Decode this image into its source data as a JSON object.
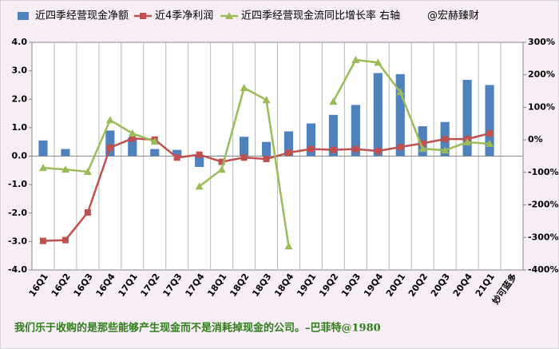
{
  "chart_data": {
    "type": "bar-line",
    "watermark": "@宏赫臻财",
    "quote": "我们乐于收购的是那些能够产生现金而不是消耗掉现金的公司。–巴菲特@1980",
    "categories": [
      "16Q1",
      "16Q2",
      "16Q3",
      "16Q4",
      "17Q1",
      "17Q2",
      "17Q3",
      "17Q4",
      "18Q1",
      "18Q2",
      "18Q3",
      "18Q4",
      "19Q1",
      "19Q2",
      "19Q3",
      "19Q4",
      "20Q1",
      "20Q2",
      "20Q3",
      "20Q4",
      "21Q1",
      "妙可蓝多"
    ],
    "series": [
      {
        "name": "近四季经营现金净额",
        "kind": "bar",
        "color": "#4f81bd",
        "values": [
          0.55,
          0.25,
          0,
          0.9,
          0.65,
          0.25,
          0.22,
          -0.38,
          0.02,
          0.68,
          0.5,
          0.87,
          1.15,
          1.45,
          1.8,
          2.92,
          2.88,
          1.05,
          1.2,
          2.68,
          2.5,
          null
        ]
      },
      {
        "name": "近4季净利润",
        "kind": "line",
        "marker": "square",
        "color": "#c0504d",
        "values": [
          -2.98,
          -2.95,
          -1.98,
          0.3,
          0.62,
          0.58,
          -0.05,
          0.05,
          -0.2,
          -0.05,
          -0.1,
          0.12,
          0.25,
          0.22,
          0.25,
          0.18,
          0.32,
          0.45,
          0.6,
          0.6,
          0.8,
          null
        ]
      },
      {
        "name": "近四季经营现金流同比增长率 右轴",
        "kind": "line",
        "marker": "triangle",
        "color": "#9bbb59",
        "axis": "y2",
        "values": [
          -86,
          -91,
          -98,
          61,
          20,
          -5,
          null,
          -143,
          -91,
          160,
          123,
          -327,
          null,
          118,
          246,
          238,
          147,
          -27,
          -32,
          -7,
          -12,
          null
        ]
      }
    ],
    "ylim": [
      -4,
      4
    ],
    "yticks": [
      {
        "value": 4,
        "label": "4.0"
      },
      {
        "value": 3,
        "label": "3.0"
      },
      {
        "value": 2,
        "label": "2.0"
      },
      {
        "value": 1,
        "label": "1.0"
      },
      {
        "value": 0,
        "label": "0.0"
      },
      {
        "value": -1,
        "label": "-1.0"
      },
      {
        "value": -2,
        "label": "-2.0"
      },
      {
        "value": -3,
        "label": "-3.0"
      },
      {
        "value": -4,
        "label": "-4.0"
      }
    ],
    "y2lim": [
      -400,
      300
    ],
    "y2ticks": [
      {
        "value": 300,
        "label": "300%"
      },
      {
        "value": 200,
        "label": "200%"
      },
      {
        "value": 100,
        "label": "100%"
      },
      {
        "value": 0,
        "label": "0%"
      },
      {
        "value": -100,
        "label": "-100%"
      },
      {
        "value": -200,
        "label": "-200%"
      },
      {
        "value": -300,
        "label": "-300%"
      },
      {
        "value": -400,
        "label": "-400%"
      }
    ],
    "grid": "x"
  }
}
